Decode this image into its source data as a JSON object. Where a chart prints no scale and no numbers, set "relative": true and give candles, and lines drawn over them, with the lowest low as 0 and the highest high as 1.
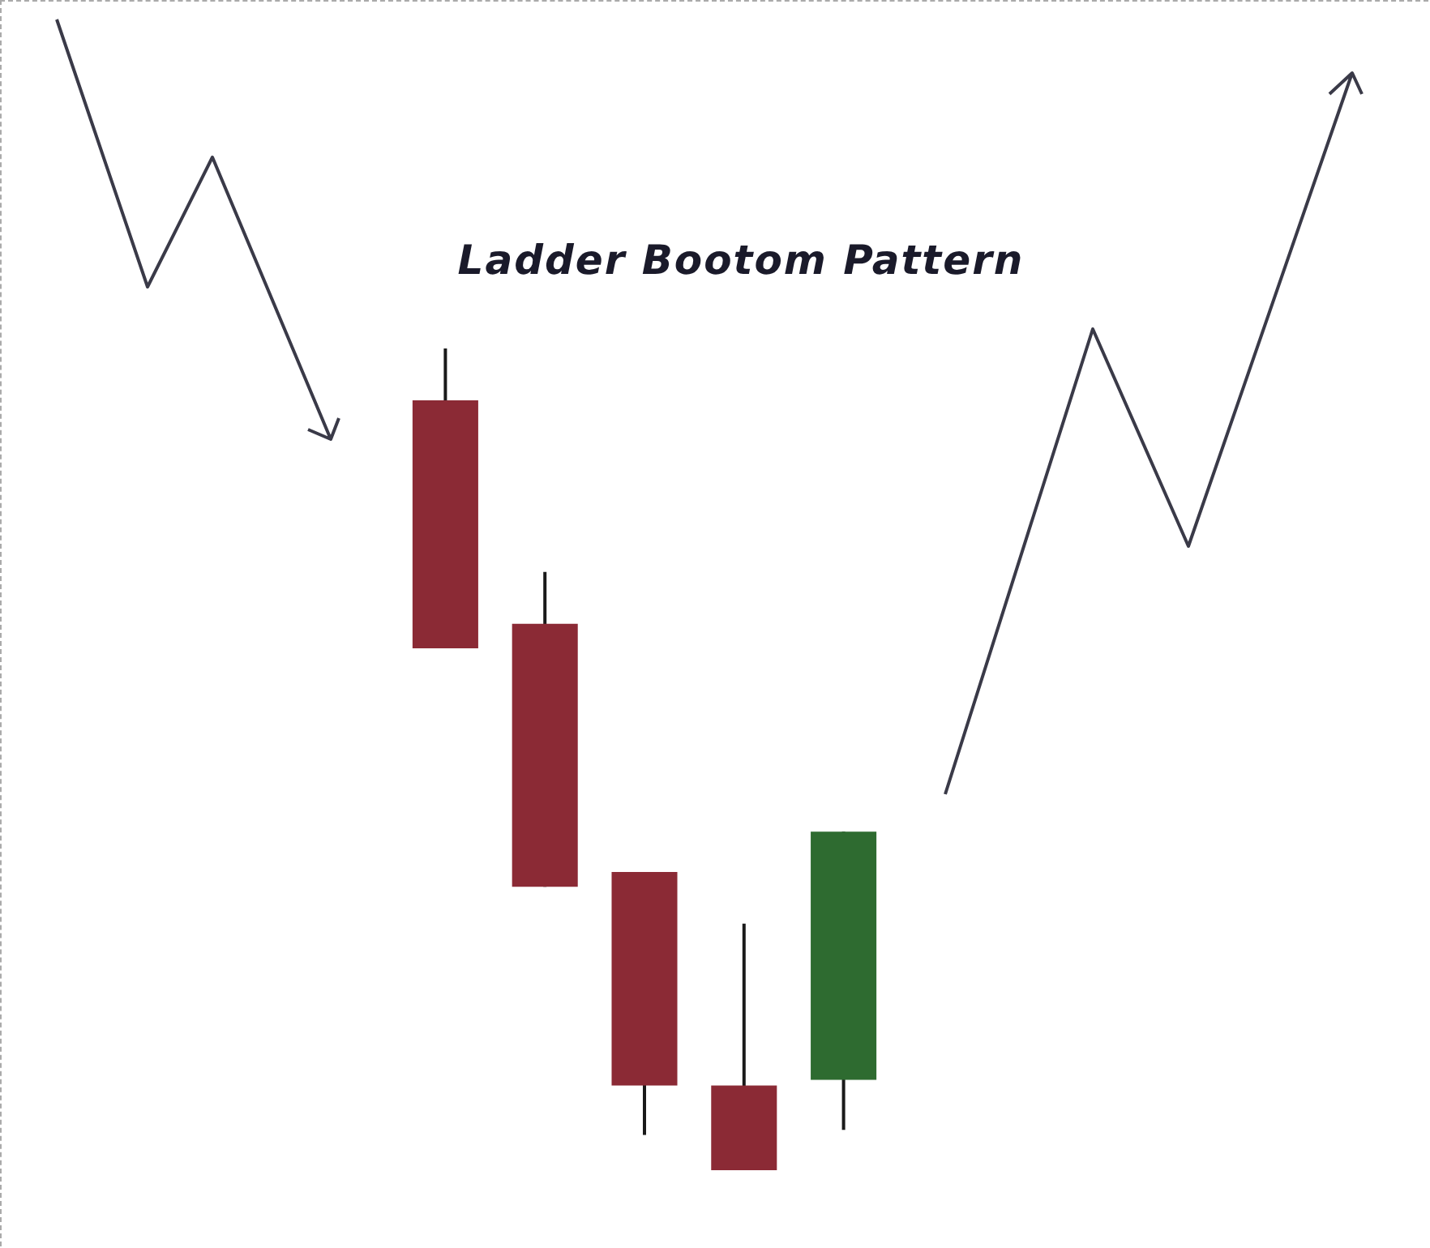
{
  "chart_data": {
    "type": "candlestick",
    "title": "Ladder Bootom Pattern",
    "relative": true,
    "categories": [
      null,
      null,
      null,
      null,
      null
    ],
    "ohlc": [
      [
        0.937,
        1,
        0.635,
        0.635
      ],
      [
        0.665,
        0.728,
        0.345,
        0.345
      ],
      [
        0.363,
        0.363,
        0.043,
        0.103
      ],
      [
        0.103,
        0.3,
        0,
        0
      ],
      [
        0.11,
        0.412,
        0.049,
        0.412
      ]
    ],
    "colors": [
      "#8b2a35",
      "#8b2a35",
      "#8b2a35",
      "#8b2a35",
      "#2e6b30"
    ]
  }
}
